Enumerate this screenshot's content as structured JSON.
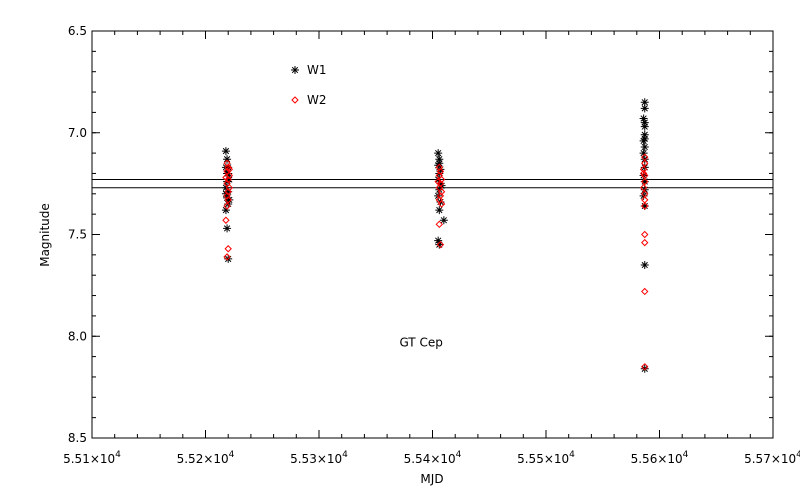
{
  "chart_data": {
    "type": "scatter",
    "title": "",
    "xlabel": "MJD",
    "ylabel": "Magnitude",
    "xlim": [
      55100,
      55700
    ],
    "ylim": [
      8.5,
      6.5
    ],
    "y_inverted": true,
    "x_ticks": [
      {
        "value": 55100,
        "mantissa": "5.51",
        "exp": "4"
      },
      {
        "value": 55200,
        "mantissa": "5.52",
        "exp": "4"
      },
      {
        "value": 55300,
        "mantissa": "5.53",
        "exp": "4"
      },
      {
        "value": 55400,
        "mantissa": "5.54",
        "exp": "4"
      },
      {
        "value": 55500,
        "mantissa": "5.55",
        "exp": "4"
      },
      {
        "value": 55600,
        "mantissa": "5.56",
        "exp": "4"
      },
      {
        "value": 55700,
        "mantissa": "5.57",
        "exp": "4"
      }
    ],
    "times_sign": "×10",
    "y_ticks": [
      {
        "value": 6.5,
        "label": "6.5"
      },
      {
        "value": 7.0,
        "label": "7.0"
      },
      {
        "value": 7.5,
        "label": "7.5"
      },
      {
        "value": 8.0,
        "label": "8.0"
      },
      {
        "value": 8.5,
        "label": "8.5"
      }
    ],
    "annotation": {
      "text": "GT Cep",
      "x": 55390,
      "y": 8.05
    },
    "hlines": [
      7.23,
      7.27
    ],
    "legend_position": "top-left",
    "grid": false,
    "series": [
      {
        "name": "W1",
        "marker": "asterisk",
        "color": "#000000",
        "points": [
          [
            55218,
            7.09
          ],
          [
            55219,
            7.13
          ],
          [
            55218,
            7.17
          ],
          [
            55220,
            7.2
          ],
          [
            55219,
            7.24
          ],
          [
            55218,
            7.27
          ],
          [
            55220,
            7.29
          ],
          [
            55219,
            7.32
          ],
          [
            55220,
            7.35
          ],
          [
            55218,
            7.38
          ],
          [
            55221,
            7.33
          ],
          [
            55219,
            7.47
          ],
          [
            55220,
            7.62
          ],
          [
            55219,
            7.2
          ],
          [
            55221,
            7.23
          ],
          [
            55220,
            7.17
          ],
          [
            55218,
            7.3
          ],
          [
            55405,
            7.1
          ],
          [
            55406,
            7.13
          ],
          [
            55405,
            7.16
          ],
          [
            55407,
            7.18
          ],
          [
            55406,
            7.2
          ],
          [
            55405,
            7.23
          ],
          [
            55407,
            7.25
          ],
          [
            55406,
            7.28
          ],
          [
            55405,
            7.31
          ],
          [
            55407,
            7.34
          ],
          [
            55406,
            7.38
          ],
          [
            55405,
            7.53
          ],
          [
            55406,
            7.55
          ],
          [
            55410,
            7.43
          ],
          [
            55408,
            7.26
          ],
          [
            55406,
            7.15
          ],
          [
            55587,
            6.85
          ],
          [
            55587,
            6.88
          ],
          [
            55586,
            6.93
          ],
          [
            55587,
            6.97
          ],
          [
            55587,
            7.01
          ],
          [
            55586,
            7.04
          ],
          [
            55587,
            7.07
          ],
          [
            55586,
            7.1
          ],
          [
            55587,
            7.13
          ],
          [
            55587,
            7.17
          ],
          [
            55586,
            7.21
          ],
          [
            55587,
            7.24
          ],
          [
            55587,
            7.28
          ],
          [
            55586,
            7.31
          ],
          [
            55587,
            7.36
          ],
          [
            55587,
            7.65
          ],
          [
            55587,
            8.16
          ],
          [
            55587,
            6.95
          ],
          [
            55587,
            7.03
          ]
        ]
      },
      {
        "name": "W2",
        "marker": "diamond",
        "color": "#ff0000",
        "points": [
          [
            55219,
            7.15
          ],
          [
            55220,
            7.17
          ],
          [
            55219,
            7.19
          ],
          [
            55221,
            7.21
          ],
          [
            55220,
            7.23
          ],
          [
            55219,
            7.25
          ],
          [
            55221,
            7.27
          ],
          [
            55220,
            7.29
          ],
          [
            55219,
            7.31
          ],
          [
            55220,
            7.33
          ],
          [
            55219,
            7.36
          ],
          [
            55218,
            7.43
          ],
          [
            55220,
            7.57
          ],
          [
            55219,
            7.61
          ],
          [
            55218,
            7.22
          ],
          [
            55221,
            7.18
          ],
          [
            55406,
            7.17
          ],
          [
            55407,
            7.19
          ],
          [
            55406,
            7.21
          ],
          [
            55408,
            7.23
          ],
          [
            55407,
            7.25
          ],
          [
            55406,
            7.27
          ],
          [
            55408,
            7.29
          ],
          [
            55407,
            7.31
          ],
          [
            55406,
            7.33
          ],
          [
            55408,
            7.35
          ],
          [
            55406,
            7.45
          ],
          [
            55407,
            7.55
          ],
          [
            55405,
            7.24
          ],
          [
            55587,
            7.12
          ],
          [
            55587,
            7.15
          ],
          [
            55586,
            7.18
          ],
          [
            55587,
            7.21
          ],
          [
            55587,
            7.24
          ],
          [
            55586,
            7.27
          ],
          [
            55587,
            7.3
          ],
          [
            55587,
            7.33
          ],
          [
            55587,
            7.36
          ],
          [
            55587,
            7.5
          ],
          [
            55587,
            7.54
          ],
          [
            55587,
            7.78
          ],
          [
            55587,
            8.15
          ],
          [
            55586,
            7.2
          ]
        ]
      }
    ]
  }
}
